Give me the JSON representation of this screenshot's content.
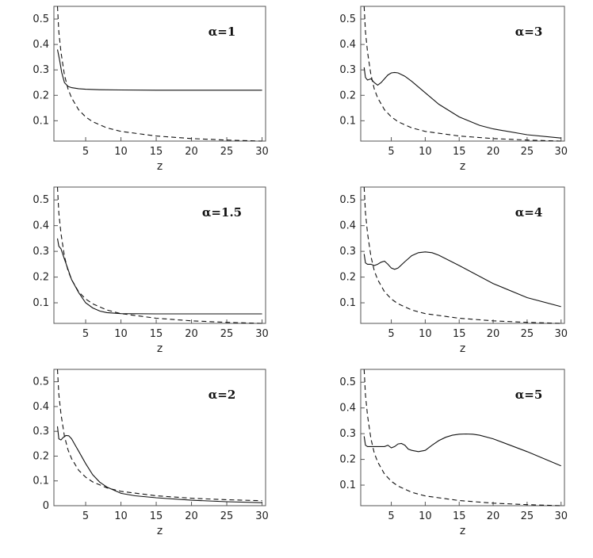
{
  "chart_data": [
    {
      "type": "line",
      "title": "α=1",
      "xlabel": "z",
      "ylabel": "",
      "xlim": [
        0.5,
        30.5
      ],
      "ylim": [
        0.02,
        0.55
      ],
      "xticks": [
        5,
        10,
        15,
        20,
        25,
        30
      ],
      "yticks": [
        0.1,
        0.2,
        0.3,
        0.4,
        0.5
      ],
      "ytick_labels": [
        "0.1",
        "0.2",
        "0.3",
        "0.4",
        "0.5"
      ],
      "series": [
        {
          "name": "solid",
          "style": "solid",
          "x": [
            1,
            1.3,
            1.6,
            2,
            2.5,
            3,
            4,
            5,
            7,
            10,
            15,
            20,
            25,
            30
          ],
          "y": [
            0.38,
            0.34,
            0.29,
            0.25,
            0.235,
            0.23,
            0.226,
            0.224,
            0.222,
            0.221,
            0.22,
            0.22,
            0.22,
            0.22
          ]
        },
        {
          "name": "dashed",
          "style": "dashed",
          "x": [
            1,
            1.2,
            1.5,
            2,
            2.5,
            3,
            4,
            5,
            6,
            8,
            10,
            15,
            20,
            25,
            30
          ],
          "y": [
            0.55,
            0.45,
            0.37,
            0.28,
            0.225,
            0.19,
            0.143,
            0.115,
            0.096,
            0.072,
            0.058,
            0.04,
            0.03,
            0.024,
            0.02
          ]
        }
      ]
    },
    {
      "type": "line",
      "title": "α=3",
      "xlabel": "z",
      "ylabel": "",
      "xlim": [
        0.5,
        30.5
      ],
      "ylim": [
        0.02,
        0.55
      ],
      "xticks": [
        5,
        10,
        15,
        20,
        25,
        30
      ],
      "yticks": [
        0.1,
        0.2,
        0.3,
        0.4,
        0.5
      ],
      "ytick_labels": [
        "0.1",
        "0.2",
        "0.3",
        "0.4",
        "0.5"
      ],
      "series": [
        {
          "name": "solid",
          "style": "solid",
          "x": [
            1,
            1.2,
            1.5,
            2,
            2.5,
            3,
            3.5,
            4,
            4.5,
            5,
            5.5,
            6,
            7,
            8,
            10,
            12,
            15,
            18,
            20,
            25,
            30
          ],
          "y": [
            0.31,
            0.27,
            0.26,
            0.265,
            0.25,
            0.24,
            0.25,
            0.265,
            0.28,
            0.288,
            0.29,
            0.288,
            0.275,
            0.255,
            0.21,
            0.165,
            0.115,
            0.082,
            0.068,
            0.045,
            0.032
          ]
        },
        {
          "name": "dashed",
          "style": "dashed",
          "x": [
            1,
            1.2,
            1.5,
            2,
            2.5,
            3,
            4,
            5,
            6,
            8,
            10,
            15,
            20,
            25,
            30
          ],
          "y": [
            0.55,
            0.45,
            0.37,
            0.28,
            0.225,
            0.19,
            0.143,
            0.115,
            0.096,
            0.072,
            0.058,
            0.04,
            0.03,
            0.024,
            0.02
          ]
        }
      ]
    },
    {
      "type": "line",
      "title": "α=1.5",
      "xlabel": "z",
      "ylabel": "",
      "xlim": [
        0.5,
        30.5
      ],
      "ylim": [
        0.02,
        0.55
      ],
      "xticks": [
        5,
        10,
        15,
        20,
        25,
        30
      ],
      "yticks": [
        0.1,
        0.2,
        0.3,
        0.4,
        0.5
      ],
      "ytick_labels": [
        "0.1",
        "0.2",
        "0.3",
        "0.4",
        "0.5"
      ],
      "series": [
        {
          "name": "solid",
          "style": "solid",
          "x": [
            1,
            1.2,
            1.5,
            2,
            2.5,
            3,
            4,
            5,
            6,
            7,
            8,
            10,
            15,
            20,
            25,
            30
          ],
          "y": [
            0.35,
            0.32,
            0.31,
            0.27,
            0.23,
            0.19,
            0.14,
            0.1,
            0.08,
            0.068,
            0.062,
            0.058,
            0.057,
            0.057,
            0.057,
            0.057
          ]
        },
        {
          "name": "dashed",
          "style": "dashed",
          "x": [
            1,
            1.2,
            1.5,
            2,
            2.5,
            3,
            4,
            5,
            6,
            8,
            10,
            15,
            20,
            25,
            30
          ],
          "y": [
            0.55,
            0.45,
            0.37,
            0.28,
            0.225,
            0.19,
            0.143,
            0.115,
            0.096,
            0.072,
            0.058,
            0.04,
            0.03,
            0.024,
            0.02
          ]
        }
      ]
    },
    {
      "type": "line",
      "title": "α=4",
      "xlabel": "z",
      "ylabel": "",
      "xlim": [
        0.5,
        30.5
      ],
      "ylim": [
        0.02,
        0.55
      ],
      "xticks": [
        5,
        10,
        15,
        20,
        25,
        30
      ],
      "yticks": [
        0.1,
        0.2,
        0.3,
        0.4,
        0.5
      ],
      "ytick_labels": [
        "0.1",
        "0.2",
        "0.3",
        "0.4",
        "0.5"
      ],
      "series": [
        {
          "name": "solid",
          "style": "solid",
          "x": [
            1,
            1.2,
            1.5,
            2,
            2.5,
            3,
            3.5,
            4,
            4.5,
            5,
            5.5,
            6,
            7,
            8,
            9,
            10,
            11,
            12,
            15,
            20,
            25,
            30
          ],
          "y": [
            0.29,
            0.255,
            0.25,
            0.25,
            0.245,
            0.25,
            0.258,
            0.262,
            0.25,
            0.235,
            0.23,
            0.235,
            0.26,
            0.283,
            0.295,
            0.298,
            0.295,
            0.285,
            0.245,
            0.175,
            0.12,
            0.085
          ]
        },
        {
          "name": "dashed",
          "style": "dashed",
          "x": [
            1,
            1.2,
            1.5,
            2,
            2.5,
            3,
            4,
            5,
            6,
            8,
            10,
            15,
            20,
            25,
            30
          ],
          "y": [
            0.55,
            0.45,
            0.37,
            0.28,
            0.225,
            0.19,
            0.143,
            0.115,
            0.096,
            0.072,
            0.058,
            0.04,
            0.03,
            0.024,
            0.02
          ]
        }
      ]
    },
    {
      "type": "line",
      "title": "α=2",
      "xlabel": "z",
      "ylabel": "",
      "xlim": [
        0.5,
        30.5
      ],
      "ylim": [
        0,
        0.55
      ],
      "xticks": [
        5,
        10,
        15,
        20,
        25,
        30
      ],
      "yticks": [
        0,
        0.1,
        0.2,
        0.3,
        0.4,
        0.5
      ],
      "ytick_labels": [
        "0",
        "0.1",
        "0.2",
        "0.3",
        "0.4",
        "0.5"
      ],
      "series": [
        {
          "name": "solid",
          "style": "solid",
          "x": [
            1,
            1.2,
            1.5,
            1.8,
            2.2,
            2.6,
            3,
            3.5,
            4,
            5,
            6,
            7,
            8,
            10,
            12,
            15,
            20,
            25,
            30
          ],
          "y": [
            0.32,
            0.27,
            0.265,
            0.275,
            0.283,
            0.282,
            0.27,
            0.245,
            0.22,
            0.17,
            0.125,
            0.095,
            0.075,
            0.05,
            0.04,
            0.032,
            0.022,
            0.016,
            0.012
          ]
        },
        {
          "name": "dashed",
          "style": "dashed",
          "x": [
            1,
            1.2,
            1.5,
            2,
            2.5,
            3,
            4,
            5,
            6,
            8,
            10,
            15,
            20,
            25,
            30
          ],
          "y": [
            0.55,
            0.45,
            0.37,
            0.28,
            0.225,
            0.19,
            0.143,
            0.115,
            0.096,
            0.072,
            0.058,
            0.04,
            0.03,
            0.024,
            0.02
          ]
        }
      ]
    },
    {
      "type": "line",
      "title": "α=5",
      "xlabel": "z",
      "ylabel": "",
      "xlim": [
        0.5,
        30.5
      ],
      "ylim": [
        0.02,
        0.55
      ],
      "xticks": [
        5,
        10,
        15,
        20,
        25,
        30
      ],
      "yticks": [
        0.1,
        0.2,
        0.3,
        0.4,
        0.5
      ],
      "ytick_labels": [
        "0.1",
        "0.2",
        "0.3",
        "0.4",
        "0.5"
      ],
      "series": [
        {
          "name": "solid",
          "style": "solid",
          "x": [
            1,
            1.2,
            1.5,
            2,
            3,
            4,
            4.5,
            5,
            5.5,
            6,
            6.5,
            7,
            7.5,
            8,
            9,
            10,
            11,
            12,
            13,
            14,
            15,
            16,
            17,
            18,
            20,
            25,
            30
          ],
          "y": [
            0.29,
            0.255,
            0.25,
            0.25,
            0.25,
            0.25,
            0.255,
            0.245,
            0.25,
            0.26,
            0.262,
            0.255,
            0.24,
            0.235,
            0.23,
            0.235,
            0.255,
            0.273,
            0.286,
            0.294,
            0.298,
            0.299,
            0.298,
            0.294,
            0.28,
            0.23,
            0.175
          ]
        },
        {
          "name": "dashed",
          "style": "dashed",
          "x": [
            1,
            1.2,
            1.5,
            2,
            2.5,
            3,
            4,
            5,
            6,
            8,
            10,
            15,
            20,
            25,
            30
          ],
          "y": [
            0.55,
            0.45,
            0.37,
            0.28,
            0.225,
            0.19,
            0.143,
            0.115,
            0.096,
            0.072,
            0.058,
            0.04,
            0.03,
            0.024,
            0.02
          ]
        }
      ]
    }
  ]
}
